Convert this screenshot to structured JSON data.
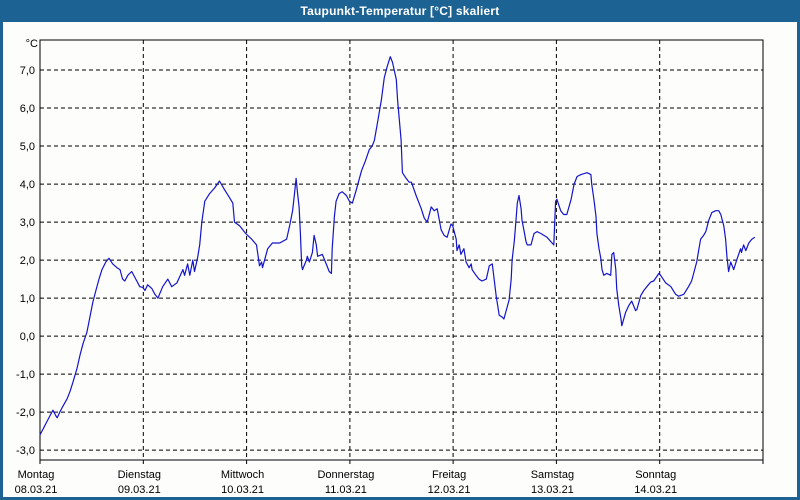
{
  "window": {
    "title": "Taupunkt-Temperatur [°C] skaliert"
  },
  "chart_data": {
    "type": "line",
    "title": "Taupunkt-Temperatur [°C] skaliert",
    "y_unit_label": "°C",
    "ylim": [
      -3.26,
      7.79
    ],
    "x_range_hours": [
      0,
      168
    ],
    "grid": "dashed",
    "legend_position": "none",
    "y_ticks": [
      7,
      6,
      5,
      4,
      3,
      2,
      1,
      0,
      -1,
      -2,
      -3
    ],
    "y_tick_labels": [
      "7,0",
      "6,0",
      "5,0",
      "4,0",
      "3,0",
      "2,0",
      "1,0",
      "0,0",
      "-1,0",
      "-2,0",
      "-3,0"
    ],
    "x_days": [
      {
        "name": "Montag",
        "date": "08.03.21"
      },
      {
        "name": "Dienstag",
        "date": "09.03.21"
      },
      {
        "name": "Mittwoch",
        "date": "10.03.21"
      },
      {
        "name": "Donnerstag",
        "date": "11.03.21"
      },
      {
        "name": "Freitag",
        "date": "12.03.21"
      },
      {
        "name": "Samstag",
        "date": "13.03.21"
      },
      {
        "name": "Sonntag",
        "date": "14.03.21"
      }
    ],
    "colors": {
      "line": "#1414cc",
      "frame": "#1c6394",
      "grid": "#000000",
      "background": "#ffffff"
    },
    "series": [
      {
        "name": "Taupunkt-Temperatur",
        "points": [
          [
            0,
            -2.6
          ],
          [
            0.7,
            -2.45
          ],
          [
            1.6,
            -2.25
          ],
          [
            2.3,
            -2.1
          ],
          [
            3,
            -1.95
          ],
          [
            3.7,
            -2.1
          ],
          [
            4,
            -2.15
          ],
          [
            4.6,
            -2.0
          ],
          [
            5.3,
            -1.85
          ],
          [
            6.3,
            -1.65
          ],
          [
            7,
            -1.45
          ],
          [
            7.7,
            -1.2
          ],
          [
            8.6,
            -0.85
          ],
          [
            9.3,
            -0.5
          ],
          [
            10,
            -0.2
          ],
          [
            10.9,
            0.1
          ],
          [
            11.6,
            0.5
          ],
          [
            12.3,
            0.9
          ],
          [
            13,
            1.2
          ],
          [
            13.7,
            1.5
          ],
          [
            14.4,
            1.75
          ],
          [
            15.3,
            1.95
          ],
          [
            16,
            2.05
          ],
          [
            16.9,
            1.9
          ],
          [
            17.9,
            1.8
          ],
          [
            18.6,
            1.75
          ],
          [
            19.2,
            1.5
          ],
          [
            19.7,
            1.45
          ],
          [
            20.4,
            1.6
          ],
          [
            21.3,
            1.7
          ],
          [
            22.5,
            1.45
          ],
          [
            23.2,
            1.3
          ],
          [
            23.9,
            1.28
          ],
          [
            24.4,
            1.2
          ],
          [
            25,
            1.35
          ],
          [
            26,
            1.25
          ],
          [
            26.7,
            1.1
          ],
          [
            27.4,
            1.0
          ],
          [
            28.5,
            1.3
          ],
          [
            29.7,
            1.5
          ],
          [
            30.6,
            1.3
          ],
          [
            31.8,
            1.4
          ],
          [
            33.2,
            1.75
          ],
          [
            33.6,
            1.6
          ],
          [
            34.3,
            1.9
          ],
          [
            34.8,
            1.6
          ],
          [
            35.5,
            2.0
          ],
          [
            35.9,
            1.7
          ],
          [
            36.6,
            2.05
          ],
          [
            37.1,
            2.4
          ],
          [
            37.6,
            3.0
          ],
          [
            38.3,
            3.55
          ],
          [
            39.4,
            3.75
          ],
          [
            40.6,
            3.9
          ],
          [
            41.7,
            4.08
          ],
          [
            42.9,
            3.85
          ],
          [
            44,
            3.65
          ],
          [
            44.8,
            3.5
          ],
          [
            45.2,
            3.0
          ],
          [
            46.4,
            2.9
          ],
          [
            47.8,
            2.7
          ],
          [
            49.2,
            2.55
          ],
          [
            50.3,
            2.4
          ],
          [
            51,
            1.85
          ],
          [
            51.5,
            1.95
          ],
          [
            51.7,
            1.8
          ],
          [
            52.9,
            2.3
          ],
          [
            54,
            2.45
          ],
          [
            55.7,
            2.45
          ],
          [
            57.3,
            2.55
          ],
          [
            58,
            2.9
          ],
          [
            58.7,
            3.3
          ],
          [
            59.1,
            3.7
          ],
          [
            59.5,
            4.15
          ],
          [
            59.8,
            3.8
          ],
          [
            60.2,
            3.4
          ],
          [
            60.5,
            2.7
          ],
          [
            60.8,
            1.85
          ],
          [
            61,
            1.75
          ],
          [
            61.9,
            2.0
          ],
          [
            62.1,
            2.1
          ],
          [
            62.6,
            1.95
          ],
          [
            63.3,
            2.2
          ],
          [
            63.7,
            2.65
          ],
          [
            64.2,
            2.4
          ],
          [
            64.5,
            2.1
          ],
          [
            65.6,
            2.15
          ],
          [
            66.5,
            1.9
          ],
          [
            67.2,
            1.7
          ],
          [
            67.7,
            1.65
          ],
          [
            67.9,
            2.3
          ],
          [
            68.4,
            3.15
          ],
          [
            68.8,
            3.55
          ],
          [
            69.5,
            3.75
          ],
          [
            70.2,
            3.8
          ],
          [
            71.2,
            3.7
          ],
          [
            71.9,
            3.55
          ],
          [
            72.6,
            3.5
          ],
          [
            73.5,
            3.85
          ],
          [
            74.7,
            4.35
          ],
          [
            75.6,
            4.6
          ],
          [
            76.5,
            4.9
          ],
          [
            77.2,
            5.0
          ],
          [
            77.7,
            5.15
          ],
          [
            78.4,
            5.6
          ],
          [
            79.3,
            6.2
          ],
          [
            80,
            6.8
          ],
          [
            80.7,
            7.1
          ],
          [
            81.4,
            7.35
          ],
          [
            81.9,
            7.2
          ],
          [
            82.3,
            7.0
          ],
          [
            82.8,
            6.75
          ],
          [
            83.1,
            6.2
          ],
          [
            83.5,
            5.7
          ],
          [
            83.9,
            5.15
          ],
          [
            84.2,
            4.3
          ],
          [
            85.1,
            4.15
          ],
          [
            85.8,
            4.05
          ],
          [
            86.3,
            4.05
          ],
          [
            87.4,
            3.7
          ],
          [
            88.6,
            3.35
          ],
          [
            89.3,
            3.1
          ],
          [
            90,
            3.0
          ],
          [
            90.9,
            3.4
          ],
          [
            91.6,
            3.3
          ],
          [
            92.3,
            3.35
          ],
          [
            93.2,
            2.8
          ],
          [
            93.9,
            2.65
          ],
          [
            94.6,
            2.6
          ],
          [
            95.5,
            2.95
          ],
          [
            95.9,
            2.9
          ],
          [
            96.7,
            2.55
          ],
          [
            96.9,
            2.25
          ],
          [
            97.4,
            2.4
          ],
          [
            97.8,
            2.15
          ],
          [
            98.5,
            2.3
          ],
          [
            99,
            1.95
          ],
          [
            99.7,
            1.8
          ],
          [
            100.2,
            1.9
          ],
          [
            100.4,
            1.75
          ],
          [
            101.3,
            1.6
          ],
          [
            102,
            1.5
          ],
          [
            102.7,
            1.45
          ],
          [
            103.7,
            1.5
          ],
          [
            104.4,
            1.85
          ],
          [
            105.1,
            1.9
          ],
          [
            106,
            1.05
          ],
          [
            106.7,
            0.55
          ],
          [
            107.4,
            0.5
          ],
          [
            107.8,
            0.45
          ],
          [
            109,
            0.95
          ],
          [
            109.5,
            1.5
          ],
          [
            109.7,
            2.0
          ],
          [
            110.2,
            2.5
          ],
          [
            110.6,
            3.05
          ],
          [
            110.9,
            3.5
          ],
          [
            111.3,
            3.7
          ],
          [
            111.8,
            3.35
          ],
          [
            112,
            3.05
          ],
          [
            112.5,
            2.75
          ],
          [
            112.9,
            2.5
          ],
          [
            113.2,
            2.4
          ],
          [
            114.1,
            2.4
          ],
          [
            114.8,
            2.7
          ],
          [
            115.5,
            2.75
          ],
          [
            116.4,
            2.7
          ],
          [
            117.1,
            2.65
          ],
          [
            117.8,
            2.6
          ],
          [
            119,
            2.45
          ],
          [
            119.4,
            2.4
          ],
          [
            119.8,
            3.55
          ],
          [
            120.1,
            3.6
          ],
          [
            121,
            3.3
          ],
          [
            121.7,
            3.2
          ],
          [
            122.4,
            3.2
          ],
          [
            123.4,
            3.6
          ],
          [
            124.1,
            4.0
          ],
          [
            124.8,
            4.2
          ],
          [
            125.7,
            4.25
          ],
          [
            127.1,
            4.3
          ],
          [
            128,
            4.25
          ],
          [
            128.2,
            4.0
          ],
          [
            128.7,
            3.6
          ],
          [
            129.2,
            3.15
          ],
          [
            129.4,
            2.7
          ],
          [
            129.9,
            2.3
          ],
          [
            130.3,
            2.05
          ],
          [
            130.6,
            1.75
          ],
          [
            131,
            1.6
          ],
          [
            131.7,
            1.65
          ],
          [
            132.6,
            1.6
          ],
          [
            132.9,
            2.15
          ],
          [
            133.3,
            2.2
          ],
          [
            133.8,
            1.75
          ],
          [
            134,
            1.25
          ],
          [
            134.5,
            0.8
          ],
          [
            135,
            0.45
          ],
          [
            135.2,
            0.27
          ],
          [
            136.1,
            0.63
          ],
          [
            136.8,
            0.8
          ],
          [
            137.5,
            0.92
          ],
          [
            138.4,
            0.67
          ],
          [
            138.7,
            0.7
          ],
          [
            139.6,
            1.07
          ],
          [
            140.3,
            1.2
          ],
          [
            141,
            1.3
          ],
          [
            141.9,
            1.42
          ],
          [
            142.6,
            1.45
          ],
          [
            143.8,
            1.65
          ],
          [
            144.2,
            1.6
          ],
          [
            145.4,
            1.4
          ],
          [
            146.6,
            1.3
          ],
          [
            147.7,
            1.1
          ],
          [
            148.4,
            1.05
          ],
          [
            149.6,
            1.1
          ],
          [
            150.7,
            1.3
          ],
          [
            151.4,
            1.45
          ],
          [
            152.6,
            1.95
          ],
          [
            153.5,
            2.55
          ],
          [
            154.2,
            2.65
          ],
          [
            154.7,
            2.75
          ],
          [
            155.4,
            3.05
          ],
          [
            156.1,
            3.25
          ],
          [
            157,
            3.3
          ],
          [
            157.7,
            3.3
          ],
          [
            158.2,
            3.2
          ],
          [
            158.9,
            2.9
          ],
          [
            159.3,
            2.55
          ],
          [
            159.6,
            2.1
          ],
          [
            160,
            1.7
          ],
          [
            160.5,
            1.95
          ],
          [
            161.2,
            1.75
          ],
          [
            161.9,
            2.0
          ],
          [
            162.8,
            2.3
          ],
          [
            163,
            2.2
          ],
          [
            163.5,
            2.4
          ],
          [
            164,
            2.25
          ],
          [
            164.7,
            2.45
          ],
          [
            165.4,
            2.55
          ],
          [
            166.1,
            2.6
          ]
        ]
      }
    ]
  }
}
